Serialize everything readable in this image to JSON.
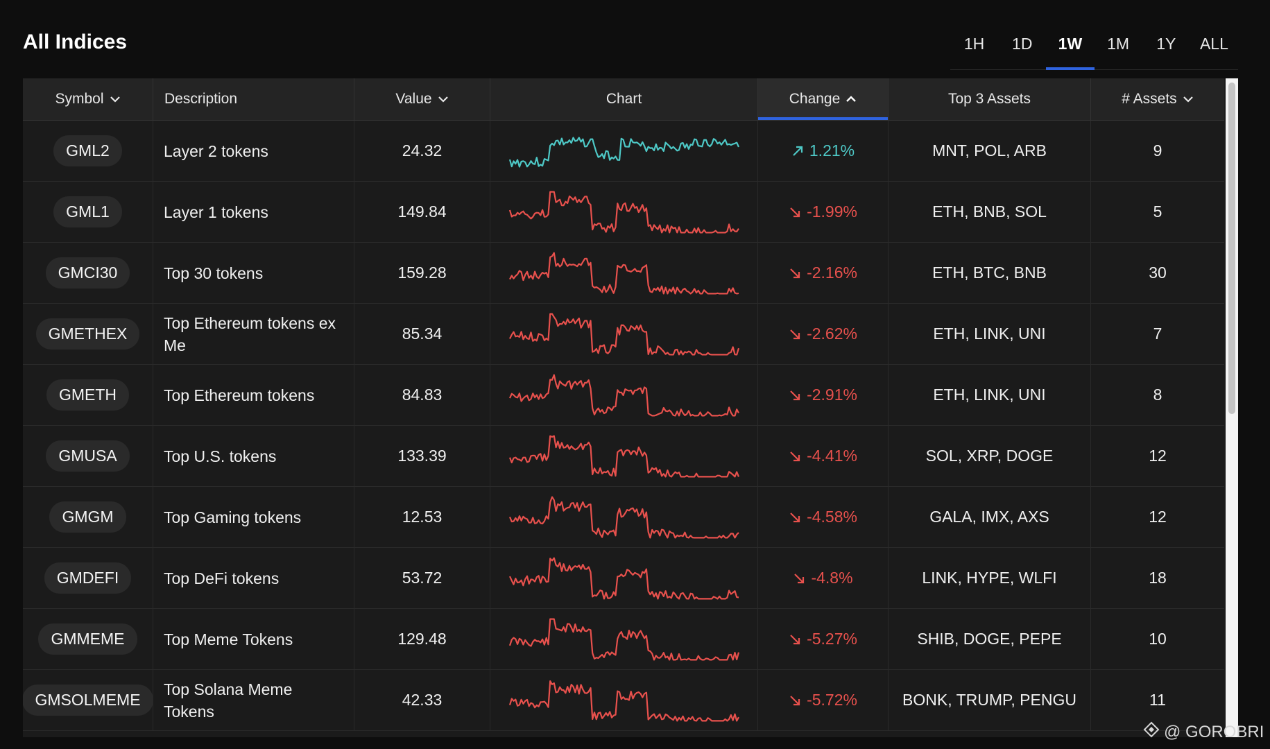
{
  "title": "All Indices",
  "timeframes": [
    {
      "label": "1H",
      "active": false
    },
    {
      "label": "1D",
      "active": false
    },
    {
      "label": "1W",
      "active": true
    },
    {
      "label": "1M",
      "active": false
    },
    {
      "label": "1Y",
      "active": false
    },
    {
      "label": "ALL",
      "active": false
    }
  ],
  "columns": {
    "symbol": "Symbol",
    "description": "Description",
    "value": "Value",
    "chart": "Chart",
    "change": "Change",
    "top3": "Top 3 Assets",
    "assets": "# Assets"
  },
  "colors": {
    "up": "#4ec9c7",
    "down": "#e8514d",
    "accent": "#2f63df"
  },
  "rows": [
    {
      "symbol": "GML2",
      "description": "Layer 2 tokens",
      "value": "24.32",
      "direction": "up",
      "change": "1.21%",
      "top3": "MNT, POL, ARB",
      "assets": "9"
    },
    {
      "symbol": "GML1",
      "description": "Layer 1 tokens",
      "value": "149.84",
      "direction": "down",
      "change": "-1.99%",
      "top3": "ETH, BNB, SOL",
      "assets": "5"
    },
    {
      "symbol": "GMCI30",
      "description": "Top 30 tokens",
      "value": "159.28",
      "direction": "down",
      "change": "-2.16%",
      "top3": "ETH, BTC, BNB",
      "assets": "30"
    },
    {
      "symbol": "GMETHEX",
      "description": "Top Ethereum tokens ex Me",
      "value": "85.34",
      "direction": "down",
      "change": "-2.62%",
      "top3": "ETH, LINK, UNI",
      "assets": "7"
    },
    {
      "symbol": "GMETH",
      "description": "Top Ethereum tokens",
      "value": "84.83",
      "direction": "down",
      "change": "-2.91%",
      "top3": "ETH, LINK, UNI",
      "assets": "8"
    },
    {
      "symbol": "GMUSA",
      "description": "Top U.S. tokens",
      "value": "133.39",
      "direction": "down",
      "change": "-4.41%",
      "top3": "SOL, XRP, DOGE",
      "assets": "12"
    },
    {
      "symbol": "GMGM",
      "description": "Top Gaming tokens",
      "value": "12.53",
      "direction": "down",
      "change": "-4.58%",
      "top3": "GALA, IMX, AXS",
      "assets": "12"
    },
    {
      "symbol": "GMDEFI",
      "description": "Top DeFi tokens",
      "value": "53.72",
      "direction": "down",
      "change": "-4.8%",
      "top3": "LINK, HYPE, WLFI",
      "assets": "18"
    },
    {
      "symbol": "GMMEME",
      "description": "Top Meme Tokens",
      "value": "129.48",
      "direction": "down",
      "change": "-5.27%",
      "top3": "SHIB, DOGE, PEPE",
      "assets": "10"
    },
    {
      "symbol": "GMSOLMEME",
      "description": "Top Solana Meme Tokens",
      "value": "42.33",
      "direction": "down",
      "change": "-5.72%",
      "top3": "BONK, TRUMP, PENGU",
      "assets": "11"
    }
  ],
  "watermark": "@ GOROBRI"
}
